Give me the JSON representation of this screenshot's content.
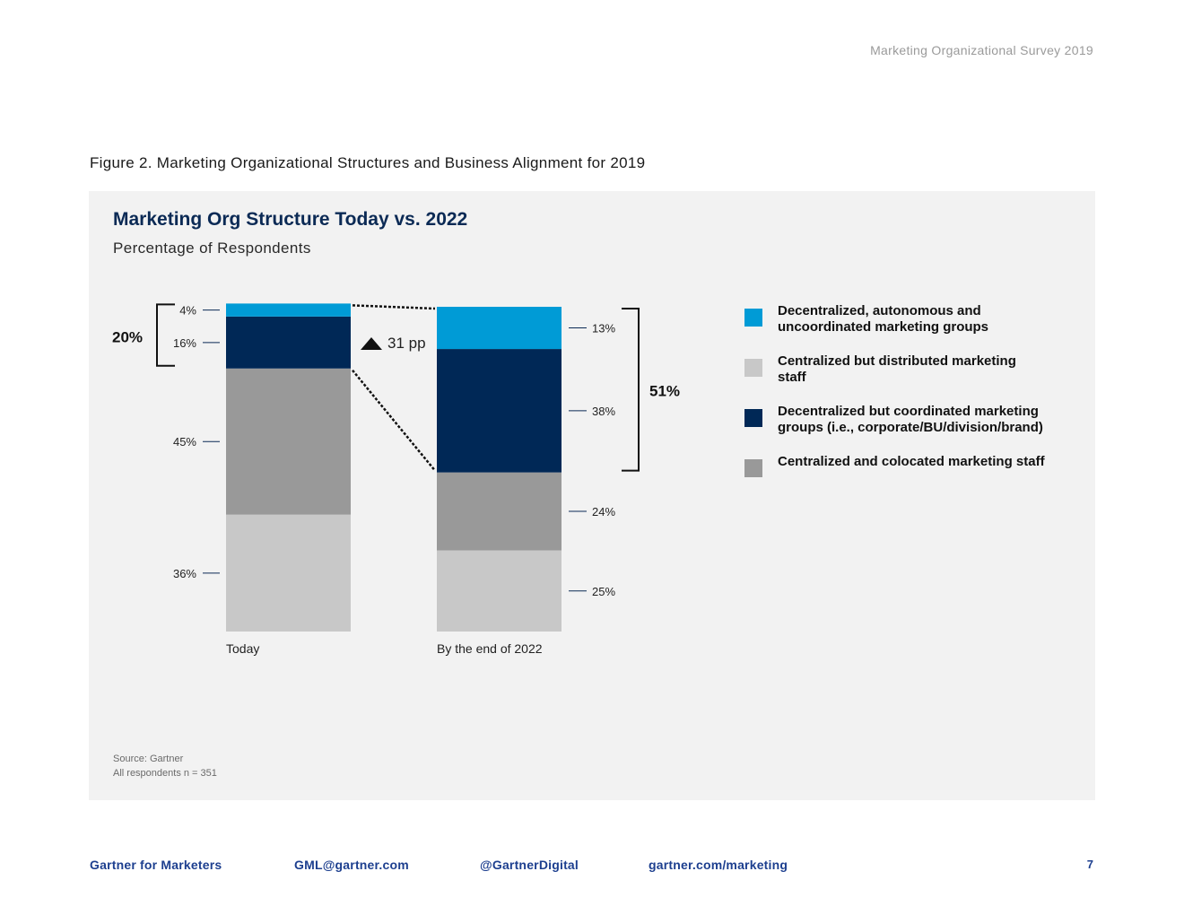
{
  "header": {
    "text": "Marketing Organizational Survey 2019"
  },
  "figure_caption": "Figure 2. Marketing Organizational Structures and Business Alignment for 2019",
  "source": {
    "line1": "Source: Gartner",
    "line2": "All respondents n = 351"
  },
  "footer": {
    "brand": "Gartner for Marketers",
    "email": "GML@gartner.com",
    "twitter": "@GartnerDigital",
    "website": "gartner.com/marketing",
    "page": "7"
  },
  "colors": {
    "decentralized_autonomous": "#009bd6",
    "decentralized_coordinated": "#002856",
    "centralized_colocated": "#999999",
    "centralized_distributed": "#c8c8c8",
    "title": "#0b2a55"
  },
  "chart_data": {
    "type": "bar",
    "stacked": true,
    "title": "Marketing Org Structure Today vs. 2022",
    "subtitle": "Percentage of Respondents",
    "categories": [
      "Today",
      "By the end of 2022"
    ],
    "series": [
      {
        "name": "Centralized but distributed marketing staff",
        "key": "centralized_distributed",
        "values": [
          36,
          25
        ],
        "labels": [
          "36%",
          "25%"
        ]
      },
      {
        "name": "Centralized and colocated marketing staff",
        "key": "centralized_colocated",
        "values": [
          45,
          24
        ],
        "labels": [
          "45%",
          "24%"
        ]
      },
      {
        "name": "Decentralized but coordinated marketing groups (i.e., corporate/BU/division/brand)",
        "key": "decentralized_coordinated",
        "values": [
          16,
          38
        ],
        "labels": [
          "16%",
          "38%"
        ]
      },
      {
        "name": "Decentralized, autonomous and uncoordinated marketing groups",
        "key": "decentralized_autonomous",
        "values": [
          4,
          13
        ],
        "labels": [
          "4%",
          "13%"
        ]
      }
    ],
    "legend": [
      {
        "key": "decentralized_autonomous",
        "label": "Decentralized, autonomous and uncoordinated marketing groups"
      },
      {
        "key": "centralized_distributed",
        "label": "Centralized but distributed marketing staff"
      },
      {
        "key": "decentralized_coordinated",
        "label": "Decentralized but coordinated marketing groups (i.e., corporate/BU/division/brand)"
      },
      {
        "key": "centralized_colocated",
        "label": "Centralized and colocated marketing staff"
      }
    ],
    "legend_position": "right",
    "annotations": {
      "today_decentralized_total": "20%",
      "end2022_decentralized_total": "51%",
      "change": "31 pp"
    },
    "ylim": [
      0,
      100
    ]
  }
}
